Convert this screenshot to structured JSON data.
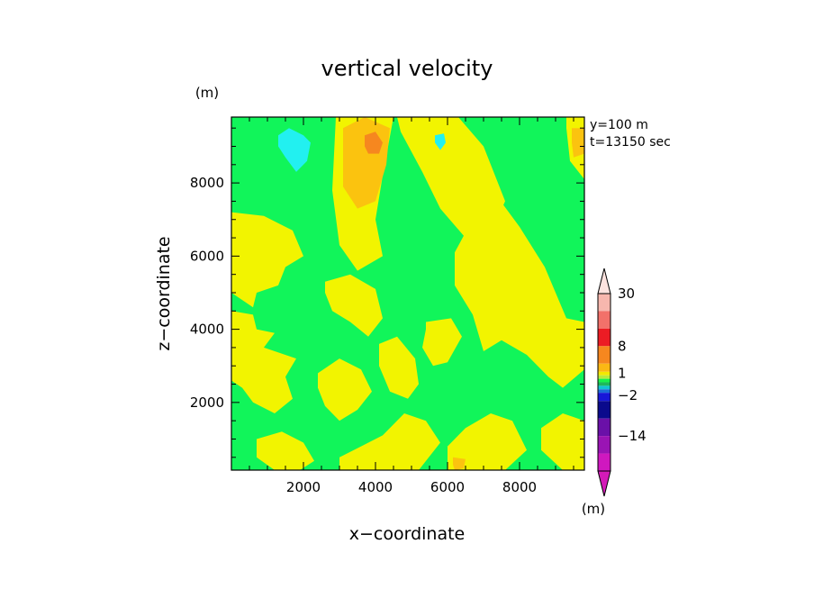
{
  "chart_data": {
    "type": "heatmap",
    "title": "vertical velocity",
    "xlabel": "x−coordinate",
    "ylabel": "z−coordinate",
    "x_unit": "(m)",
    "y_unit": "(m)",
    "xlim": [
      0,
      9800
    ],
    "ylim": [
      150,
      9800
    ],
    "x_ticks": [
      2000,
      4000,
      6000,
      8000
    ],
    "x_tick_labels": [
      "2000",
      "4000",
      "6000",
      "8000"
    ],
    "y_ticks": [
      2000,
      4000,
      6000,
      8000
    ],
    "y_tick_labels": [
      "2000",
      "4000",
      "6000",
      "8000"
    ],
    "annotations": [
      "y=100 m",
      "t=13150 sec"
    ],
    "grid": false,
    "colorbar": {
      "position": "right",
      "unit": "(m)",
      "labels": [
        {
          "value": 30,
          "text": "30"
        },
        {
          "value": 8,
          "text": "8"
        },
        {
          "value": 1,
          "text": "1"
        },
        {
          "value": -2,
          "text": "−2"
        },
        {
          "value": -14,
          "text": "−14"
        }
      ],
      "levels": [
        {
          "min": 20,
          "max": 30,
          "color": "#f7b7ae"
        },
        {
          "min": 12,
          "max": 20,
          "color": "#f2716a"
        },
        {
          "min": 8,
          "max": 12,
          "color": "#ec1c24"
        },
        {
          "min": 4,
          "max": 8,
          "color": "#f6871f"
        },
        {
          "min": 2,
          "max": 4,
          "color": "#fbb814"
        },
        {
          "min": 1,
          "max": 2,
          "color": "#f2e900"
        },
        {
          "min": 0.5,
          "max": 1,
          "color": "#b8ea3c"
        },
        {
          "min": 0,
          "max": 0.5,
          "color": "#18f24d"
        },
        {
          "min": -0.5,
          "max": 0,
          "color": "#1fb85c"
        },
        {
          "min": -1,
          "max": -0.5,
          "color": "#11c4d4"
        },
        {
          "min": -2,
          "max": -1,
          "color": "#1b6dd8"
        },
        {
          "min": -5,
          "max": -2,
          "color": "#1717d8"
        },
        {
          "min": -9,
          "max": -5,
          "color": "#0a0a8c"
        },
        {
          "min": -14,
          "max": -9,
          "color": "#6a10a8"
        },
        {
          "min": -20,
          "max": -14,
          "color": "#9a14b4"
        },
        {
          "min": -30,
          "max": -20,
          "color": "#cf18bf"
        }
      ],
      "over_color": "#fde3df",
      "under_color": "#d41ab8"
    },
    "field_colors": {
      "background": "#11f55a",
      "yellow": "#f2f400",
      "orange": "#fbc30f",
      "dark_orange": "#f6871f",
      "cyan": "#22f0f0"
    },
    "regions": [
      {
        "level": "yellow",
        "x": [
          2900,
          3700,
          4500,
          4200,
          4000,
          4200,
          3500,
          3000,
          2800,
          2900
        ],
        "z": [
          9800,
          9800,
          9800,
          8200,
          7000,
          6000,
          5600,
          6300,
          7800,
          9800
        ]
      },
      {
        "level": "yellow",
        "x": [
          0,
          900,
          1700,
          2000,
          1500,
          1300,
          700,
          600,
          0
        ],
        "z": [
          7200,
          7100,
          6700,
          6000,
          5700,
          5200,
          5000,
          4600,
          5000
        ]
      },
      {
        "level": "yellow",
        "x": [
          0,
          600,
          700,
          1200,
          900,
          1800,
          1500,
          1700,
          1200,
          600,
          300,
          0
        ],
        "z": [
          4500,
          4400,
          4000,
          3900,
          3500,
          3200,
          2700,
          2100,
          1700,
          2000,
          2400,
          2600
        ]
      },
      {
        "level": "yellow",
        "x": [
          4600,
          5300,
          6300,
          7000,
          7600,
          7100,
          6500,
          5800,
          5300,
          4700
        ],
        "z": [
          9800,
          9800,
          9800,
          9000,
          7500,
          6400,
          6500,
          7300,
          8300,
          9400
        ]
      },
      {
        "level": "yellow",
        "x": [
          6200,
          6800,
          7400,
          8000,
          8700,
          9300,
          9800,
          9800,
          9200,
          8800,
          8200,
          7500,
          7000,
          6700,
          6200
        ],
        "z": [
          6100,
          7200,
          7600,
          6800,
          5700,
          4300,
          4200,
          2900,
          2400,
          2700,
          3300,
          3700,
          3400,
          4400,
          5200
        ]
      },
      {
        "level": "yellow",
        "x": [
          9300,
          9800,
          9800,
          9400,
          9300
        ],
        "z": [
          9800,
          9800,
          8100,
          8600,
          9500
        ]
      },
      {
        "level": "yellow",
        "x": [
          2600,
          3300,
          4000,
          4200,
          3800,
          3300,
          2800,
          2600
        ],
        "z": [
          5300,
          5500,
          5100,
          4300,
          3800,
          4200,
          4500,
          5000
        ]
      },
      {
        "level": "yellow",
        "x": [
          4100,
          4600,
          5100,
          5200,
          4900,
          4400,
          4100
        ],
        "z": [
          3600,
          3800,
          3200,
          2500,
          2100,
          2300,
          3000
        ]
      },
      {
        "level": "yellow",
        "x": [
          2400,
          3000,
          3600,
          3900,
          3500,
          3000,
          2600,
          2400
        ],
        "z": [
          2800,
          3200,
          2900,
          2300,
          1800,
          1500,
          1900,
          2400
        ]
      },
      {
        "level": "yellow",
        "x": [
          5400,
          6100,
          6400,
          6000,
          5600,
          5300,
          5400
        ],
        "z": [
          4200,
          4300,
          3800,
          3100,
          3000,
          3500,
          4000
        ]
      },
      {
        "level": "yellow",
        "x": [
          3000,
          4200,
          5200,
          5800,
          5400,
          4800,
          4200,
          3600,
          3000
        ],
        "z": [
          150,
          150,
          150,
          900,
          1500,
          1700,
          1100,
          800,
          500
        ]
      },
      {
        "level": "yellow",
        "x": [
          6000,
          6800,
          7600,
          8200,
          7800,
          7200,
          6500,
          6000
        ],
        "z": [
          150,
          150,
          150,
          700,
          1500,
          1700,
          1300,
          800
        ]
      },
      {
        "level": "yellow",
        "x": [
          700,
          1400,
          2000,
          2300,
          1900,
          1200,
          700
        ],
        "z": [
          1000,
          1200,
          900,
          400,
          150,
          150,
          500
        ]
      },
      {
        "level": "yellow",
        "x": [
          8600,
          9200,
          9800,
          9800,
          9200,
          8600
        ],
        "z": [
          1300,
          1700,
          1500,
          150,
          150,
          700
        ]
      },
      {
        "level": "orange",
        "x": [
          3100,
          3700,
          4400,
          4300,
          4000,
          3500,
          3100,
          3100
        ],
        "z": [
          9500,
          9800,
          9500,
          8500,
          7500,
          7300,
          7900,
          9000
        ]
      },
      {
        "level": "dark_orange",
        "x": [
          3700,
          4000,
          4200,
          4100,
          3800,
          3700
        ],
        "z": [
          9300,
          9400,
          9100,
          8800,
          8800,
          9000
        ]
      },
      {
        "level": "orange",
        "x": [
          9450,
          9800,
          9800,
          9500,
          9450
        ],
        "z": [
          9500,
          9500,
          8800,
          8700,
          9100
        ]
      },
      {
        "level": "orange",
        "x": [
          6150,
          6500,
          6450,
          6200,
          6150
        ],
        "z": [
          500,
          450,
          200,
          150,
          300
        ]
      },
      {
        "level": "cyan",
        "x": [
          1300,
          1600,
          2000,
          2200,
          2100,
          1800,
          1500,
          1300
        ],
        "z": [
          9300,
          9500,
          9300,
          9100,
          8600,
          8300,
          8700,
          9000
        ]
      },
      {
        "level": "cyan",
        "x": [
          5650,
          5900,
          5950,
          5800,
          5650
        ],
        "z": [
          9300,
          9350,
          9100,
          8900,
          9100
        ]
      }
    ]
  }
}
